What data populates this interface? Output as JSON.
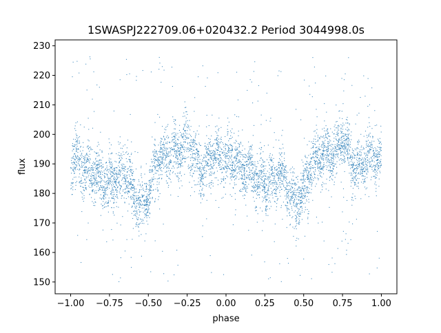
{
  "chart_data": {
    "type": "scatter",
    "title": "1SWASPJ222709.06+020432.2 Period 3044998.0s",
    "xlabel": "phase",
    "ylabel": "flux",
    "xlim": [
      -1.1,
      1.1
    ],
    "ylim": [
      146,
      232
    ],
    "xticks": [
      -1.0,
      -0.75,
      -0.5,
      -0.25,
      0.0,
      0.25,
      0.5,
      0.75,
      1.0
    ],
    "xtick_labels": [
      "−1.00",
      "−0.75",
      "−0.50",
      "−0.25",
      "0.00",
      "0.25",
      "0.50",
      "0.75",
      "1.00"
    ],
    "yticks": [
      150,
      160,
      170,
      180,
      190,
      200,
      210,
      220,
      230
    ],
    "ytick_labels": [
      "150",
      "160",
      "170",
      "180",
      "190",
      "200",
      "210",
      "220",
      "230"
    ],
    "grid": false,
    "marker_color": "#1f77b4",
    "profile": {
      "note": "approximate mean flux vs phase (one cycle, repeated over -1..1)",
      "phase": [
        0.0,
        0.05,
        0.1,
        0.15,
        0.2,
        0.25,
        0.3,
        0.35,
        0.4,
        0.45,
        0.5,
        0.55,
        0.6,
        0.65,
        0.7,
        0.75,
        0.8,
        0.85,
        0.9,
        0.95,
        1.0
      ],
      "flux": [
        190,
        191,
        189,
        187,
        185,
        183,
        185,
        188,
        181,
        176,
        180,
        190,
        192,
        193,
        194,
        198,
        193,
        188,
        192,
        193,
        190
      ],
      "scatter_sigma": 4.5,
      "outlier_range": [
        150,
        227
      ]
    }
  }
}
